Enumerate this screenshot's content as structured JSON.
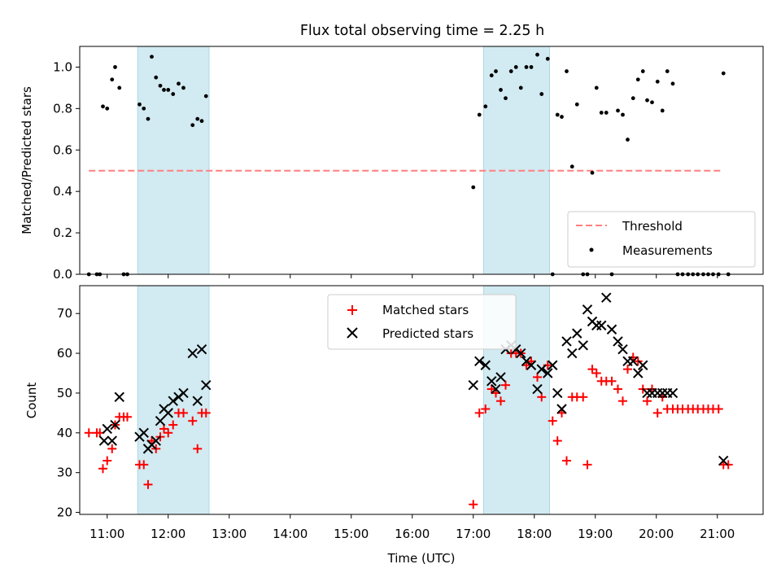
{
  "title": "Flux total observing time = 2.25 h",
  "colors": {
    "threshold": "#ff7f7f",
    "measurement": "#000000",
    "matched": "#ff0000",
    "predicted": "#000000",
    "shade": "#add8e6"
  },
  "chart_data": [
    {
      "type": "scatter",
      "ylabel": "Matched/Predicted stars",
      "xlim": [
        10.55,
        21.75
      ],
      "ylim": [
        0,
        1.1
      ],
      "yticks": [
        0,
        0.2,
        0.4,
        0.6,
        0.8,
        1.0
      ],
      "ytick_labels": [
        "0.0",
        "0.2",
        "0.4",
        "0.6",
        "0.8",
        "1.0"
      ],
      "shaded_intervals": [
        [
          11.5,
          12.67
        ],
        [
          17.17,
          18.25
        ]
      ],
      "threshold": {
        "name": "Threshold",
        "value": 0.5,
        "x_range": [
          10.7,
          21.1
        ]
      },
      "legend": [
        "Threshold",
        "Measurements"
      ],
      "legend_location": "lower right",
      "series": [
        {
          "name": "Measurements",
          "x": [
            10.7,
            10.83,
            10.88,
            10.93,
            11.0,
            11.08,
            11.13,
            11.2,
            11.27,
            11.33,
            11.53,
            11.6,
            11.67,
            11.73,
            11.8,
            11.87,
            11.93,
            12.0,
            12.08,
            12.17,
            12.25,
            12.4,
            12.48,
            12.55,
            12.62,
            17.0,
            17.1,
            17.2,
            17.3,
            17.37,
            17.45,
            17.53,
            17.62,
            17.7,
            17.78,
            17.87,
            17.95,
            18.05,
            18.12,
            18.22,
            18.3,
            18.38,
            18.45,
            18.53,
            18.62,
            18.7,
            18.8,
            18.87,
            18.95,
            19.02,
            19.1,
            19.18,
            19.27,
            19.37,
            19.45,
            19.53,
            19.62,
            19.7,
            19.78,
            19.85,
            19.93,
            20.02,
            20.1,
            20.18,
            20.27,
            20.35,
            20.43,
            20.52,
            20.6,
            20.68,
            20.77,
            20.85,
            20.93,
            21.02,
            21.1,
            21.18
          ],
          "y": [
            0.0,
            0.0,
            0.0,
            0.81,
            0.8,
            0.94,
            1.0,
            0.9,
            0.0,
            0.0,
            0.82,
            0.8,
            0.75,
            1.05,
            0.95,
            0.91,
            0.89,
            0.89,
            0.87,
            0.92,
            0.9,
            0.72,
            0.75,
            0.74,
            0.86,
            0.42,
            0.77,
            0.81,
            0.96,
            0.98,
            0.89,
            0.85,
            0.98,
            1.0,
            0.9,
            1.0,
            1.0,
            1.06,
            0.87,
            1.04,
            0.0,
            0.77,
            0.76,
            0.98,
            0.52,
            0.82,
            0.0,
            0.0,
            0.49,
            0.9,
            0.78,
            0.78,
            0.0,
            0.79,
            0.77,
            0.65,
            0.85,
            0.94,
            0.98,
            0.84,
            0.83,
            0.93,
            0.79,
            0.98,
            0.92,
            0.0,
            0.0,
            0.0,
            0.0,
            0.0,
            0.0,
            0.0,
            0.0,
            0.0,
            0.97,
            0.0
          ]
        }
      ]
    },
    {
      "type": "scatter",
      "xlabel": "Time (UTC)",
      "ylabel": "Count",
      "xlim": [
        10.55,
        21.75
      ],
      "ylim": [
        19.5,
        77
      ],
      "yticks": [
        20,
        30,
        40,
        50,
        60,
        70
      ],
      "ytick_labels": [
        "20",
        "30",
        "40",
        "50",
        "60",
        "70"
      ],
      "xticks": [
        11,
        12,
        13,
        14,
        15,
        16,
        17,
        18,
        19,
        20,
        21
      ],
      "xtick_labels": [
        "11:00",
        "12:00",
        "13:00",
        "14:00",
        "15:00",
        "16:00",
        "17:00",
        "18:00",
        "19:00",
        "20:00",
        "21:00"
      ],
      "shaded_intervals": [
        [
          11.5,
          12.67
        ],
        [
          17.17,
          18.25
        ]
      ],
      "legend": [
        "Matched stars",
        "Predicted stars"
      ],
      "legend_location": "upper center",
      "series": [
        {
          "name": "Matched stars",
          "marker": "+",
          "x": [
            10.7,
            10.83,
            10.88,
            10.93,
            11.0,
            11.08,
            11.13,
            11.2,
            11.27,
            11.33,
            11.53,
            11.6,
            11.67,
            11.73,
            11.8,
            11.87,
            11.93,
            12.0,
            12.08,
            12.17,
            12.25,
            12.4,
            12.48,
            12.55,
            12.62,
            17.0,
            17.1,
            17.2,
            17.3,
            17.37,
            17.45,
            17.53,
            17.62,
            17.7,
            17.78,
            17.87,
            17.95,
            18.05,
            18.12,
            18.22,
            18.3,
            18.38,
            18.45,
            18.53,
            18.62,
            18.7,
            18.8,
            18.87,
            18.95,
            19.02,
            19.1,
            19.18,
            19.27,
            19.37,
            19.45,
            19.53,
            19.62,
            19.7,
            19.78,
            19.85,
            19.93,
            20.02,
            20.1,
            20.18,
            20.27,
            20.35,
            20.43,
            20.52,
            20.6,
            20.68,
            20.77,
            20.85,
            20.93,
            21.02,
            21.1,
            21.18
          ],
          "y": [
            40,
            40,
            40,
            31,
            33,
            36,
            42,
            44,
            44,
            44,
            32,
            32,
            27,
            38,
            36,
            39,
            41,
            40,
            42,
            45,
            45,
            43,
            36,
            45,
            45,
            22,
            45,
            46,
            51,
            50,
            48,
            52,
            60,
            60,
            60,
            57,
            58,
            54,
            49,
            57,
            43,
            38,
            45,
            33,
            49,
            49,
            49,
            32,
            56,
            55,
            53,
            53,
            53,
            51,
            48,
            56,
            59,
            58,
            51,
            48,
            51,
            45,
            49,
            46,
            46,
            46,
            46,
            46,
            46,
            46,
            46,
            46,
            46,
            46,
            32,
            32
          ]
        },
        {
          "name": "Predicted stars",
          "marker": "x",
          "x": [
            10.95,
            11.0,
            11.08,
            11.13,
            11.2,
            11.53,
            11.6,
            11.67,
            11.73,
            11.8,
            11.87,
            11.93,
            12.0,
            12.08,
            12.17,
            12.25,
            12.4,
            12.48,
            12.55,
            12.62,
            17.0,
            17.1,
            17.2,
            17.3,
            17.37,
            17.45,
            17.53,
            17.62,
            17.7,
            17.78,
            17.87,
            17.95,
            18.05,
            18.12,
            18.22,
            18.3,
            18.38,
            18.45,
            18.53,
            18.62,
            18.7,
            18.8,
            18.87,
            18.95,
            19.02,
            19.1,
            19.18,
            19.27,
            19.37,
            19.45,
            19.53,
            19.62,
            19.7,
            19.78,
            19.85,
            19.93,
            20.02,
            20.1,
            20.18,
            20.27,
            21.1
          ],
          "y": [
            38,
            41,
            38,
            42,
            49,
            39,
            40,
            36,
            37,
            38,
            43,
            46,
            45,
            48,
            49,
            50,
            60,
            48,
            61,
            52,
            52,
            58,
            57,
            53,
            51,
            54,
            61,
            62,
            61,
            60,
            58,
            57,
            51,
            56,
            55,
            57,
            50,
            46,
            63,
            60,
            65,
            62,
            71,
            68,
            67,
            67,
            74,
            66,
            63,
            61,
            58,
            58,
            55,
            57,
            50,
            50,
            50,
            50,
            50,
            50,
            33
          ]
        }
      ]
    }
  ]
}
